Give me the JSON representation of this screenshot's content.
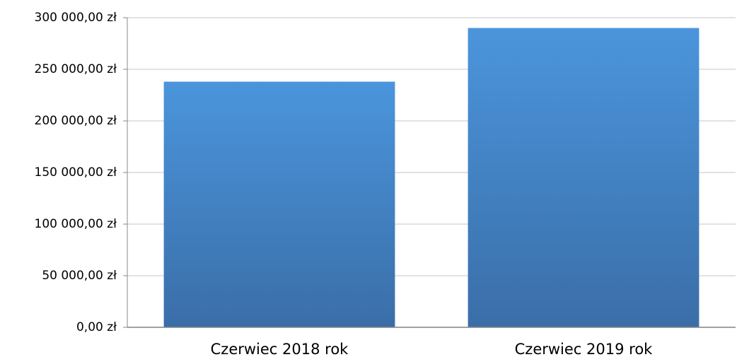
{
  "chart_data": {
    "type": "bar",
    "categories": [
      "Czerwiec 2018 rok",
      "Czerwiec 2019 rok"
    ],
    "values": [
      238000,
      290000
    ],
    "color": "#4a8fd4",
    "ylim": [
      0,
      300000
    ],
    "yticks": [
      {
        "value": 0,
        "label": "0,00 zł"
      },
      {
        "value": 50000,
        "label": "50 000,00 zł"
      },
      {
        "value": 100000,
        "label": "100 000,00 zł"
      },
      {
        "value": 150000,
        "label": "150 000,00 zł"
      },
      {
        "value": 200000,
        "label": "200 000,00 zł"
      },
      {
        "value": 250000,
        "label": "250 000,00 zł"
      },
      {
        "value": 300000,
        "label": "300 000,00 zł"
      }
    ],
    "grid": true
  }
}
